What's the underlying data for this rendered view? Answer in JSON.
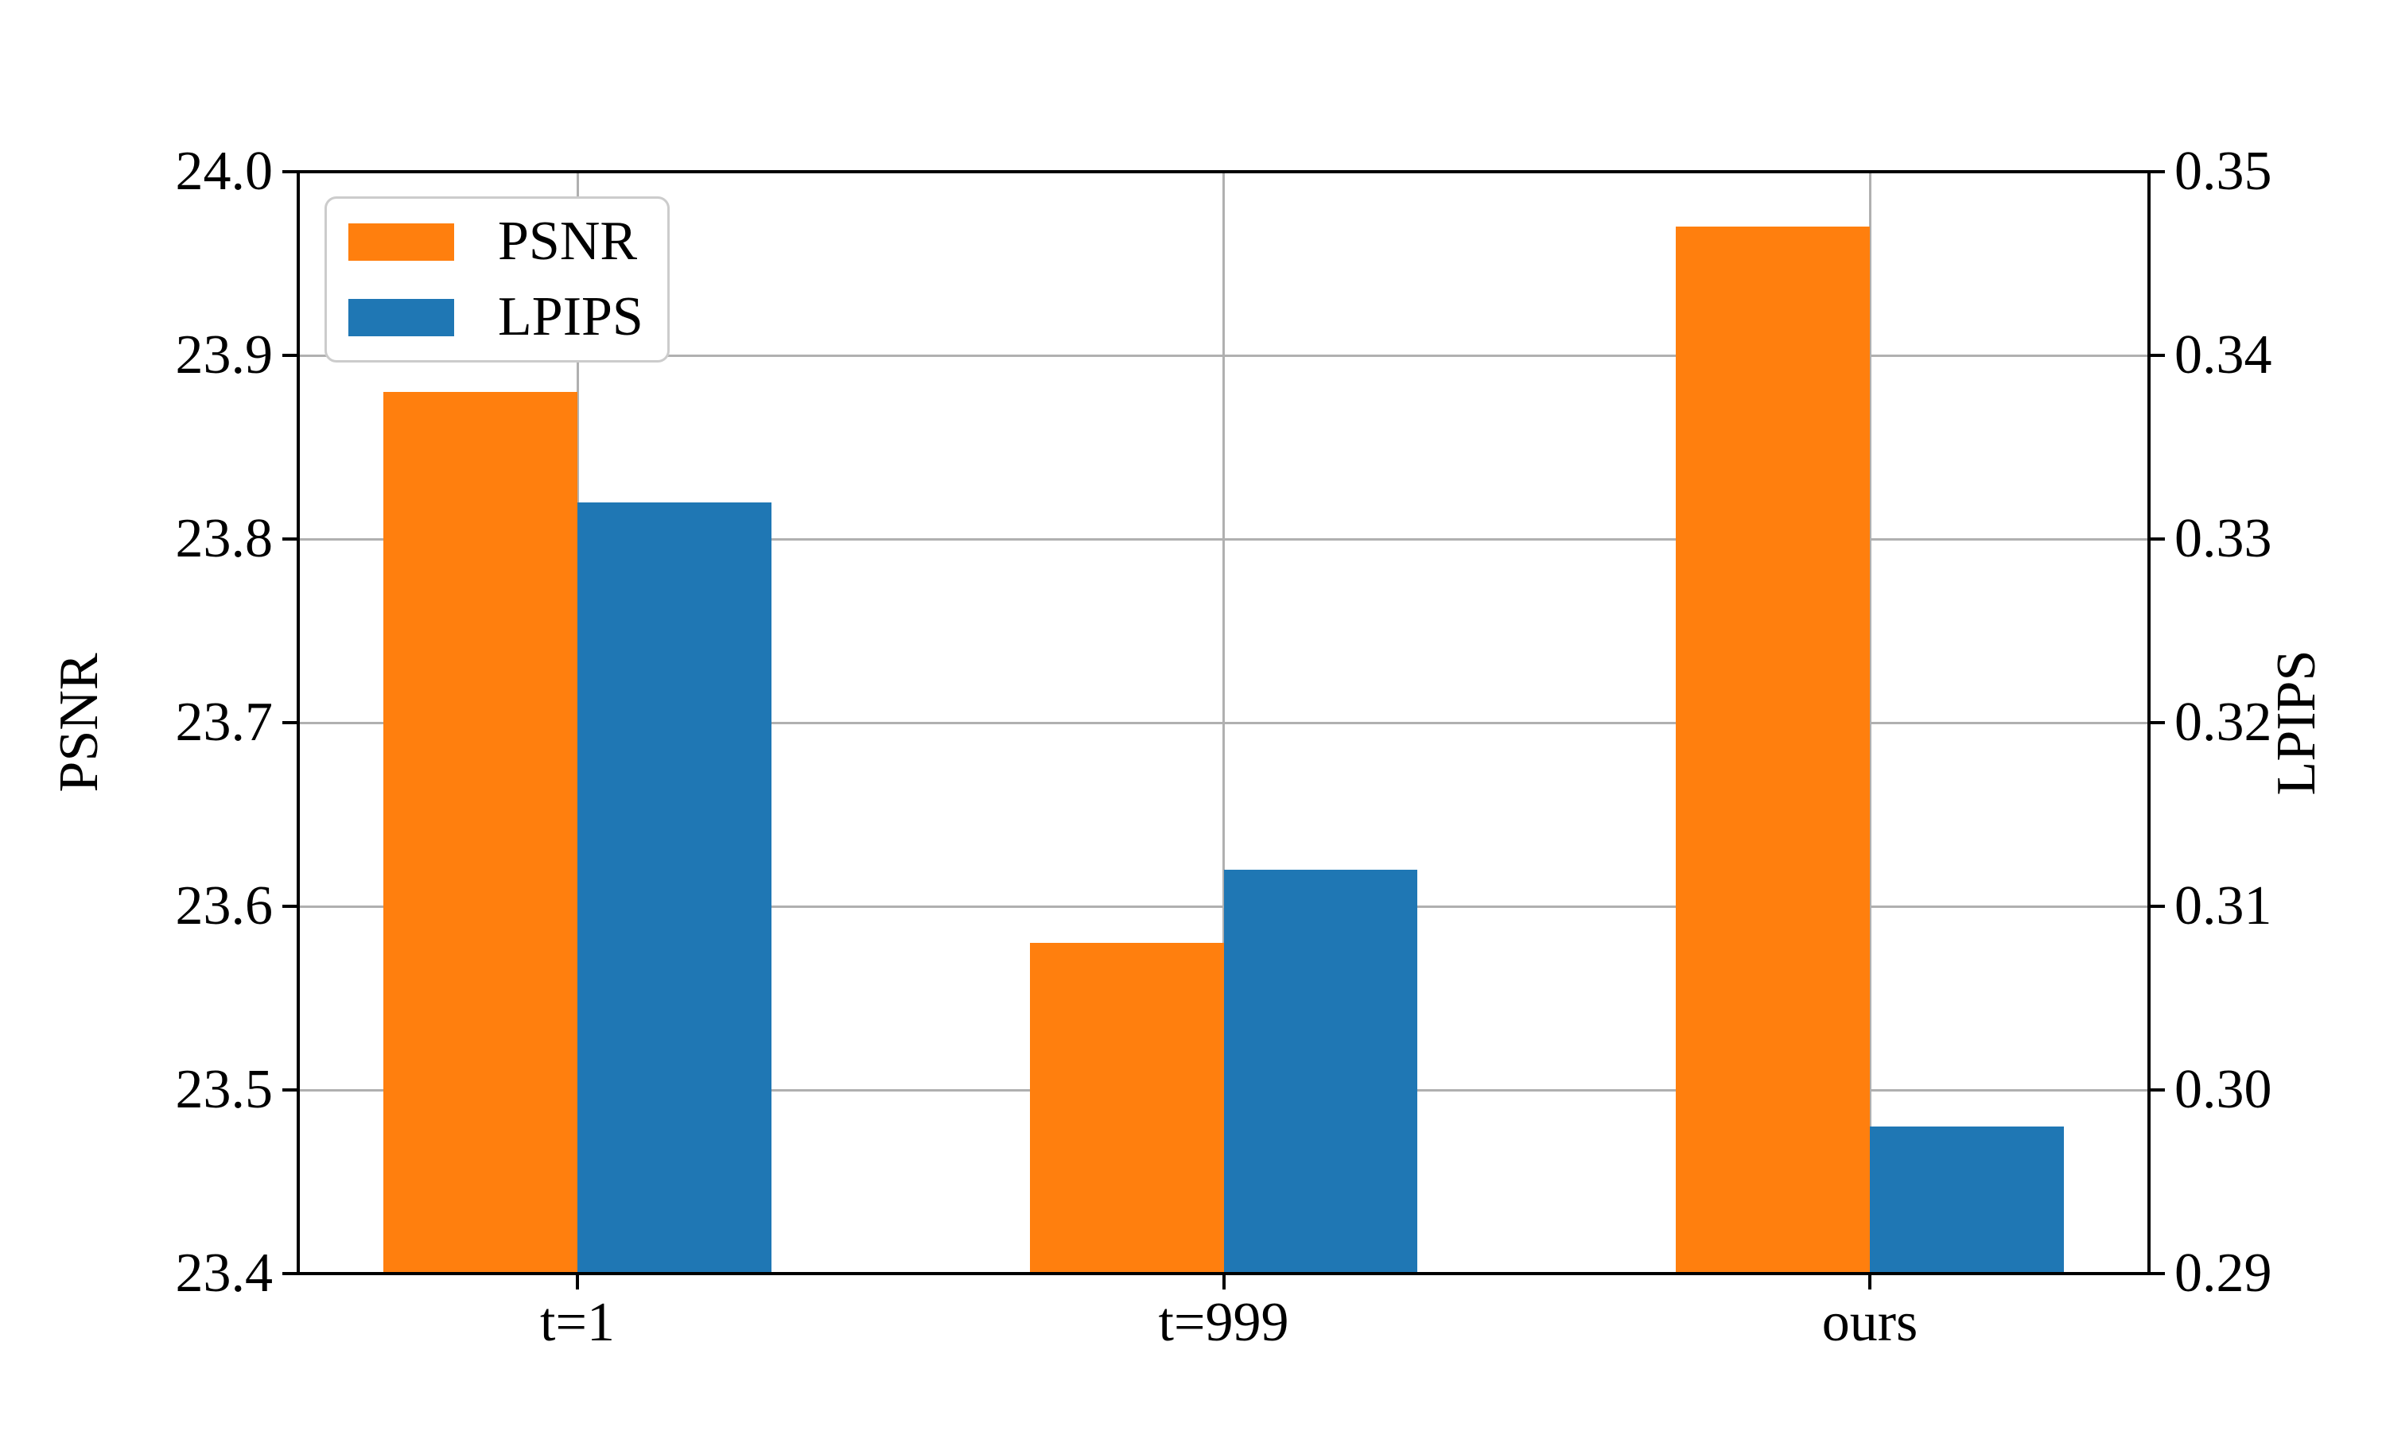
{
  "figure": {
    "background": "#ffffff",
    "spine_color": "#000000",
    "grid_color": "#b0b0b0",
    "legend_border_color": "#cccccc"
  },
  "chart_data": {
    "type": "bar",
    "categories": [
      "t=1",
      "t=999",
      "ours"
    ],
    "series": [
      {
        "name": "PSNR",
        "axis": "left",
        "color": "#ff7f0e",
        "values": [
          23.88,
          23.58,
          23.97
        ]
      },
      {
        "name": "LPIPS",
        "axis": "right",
        "color": "#1f77b4",
        "values": [
          0.332,
          0.312,
          0.298
        ]
      }
    ],
    "left_axis": {
      "label": "PSNR",
      "min": 23.4,
      "max": 24.0,
      "tick_step": 0.1,
      "tick_labels": [
        "24.0",
        "23.9",
        "23.8",
        "23.7",
        "23.6",
        "23.5",
        "23.4"
      ]
    },
    "right_axis": {
      "label": "LPIPS",
      "min": 0.29,
      "max": 0.35,
      "tick_step": 0.01,
      "tick_labels": [
        "0.35",
        "0.34",
        "0.33",
        "0.32",
        "0.31",
        "0.30",
        "0.29"
      ]
    },
    "legend": {
      "position": "upper left",
      "entries": [
        "PSNR",
        "LPIPS"
      ]
    },
    "grid": true,
    "bar_width": 0.3,
    "xlim": [
      -0.432,
      2.432
    ]
  }
}
